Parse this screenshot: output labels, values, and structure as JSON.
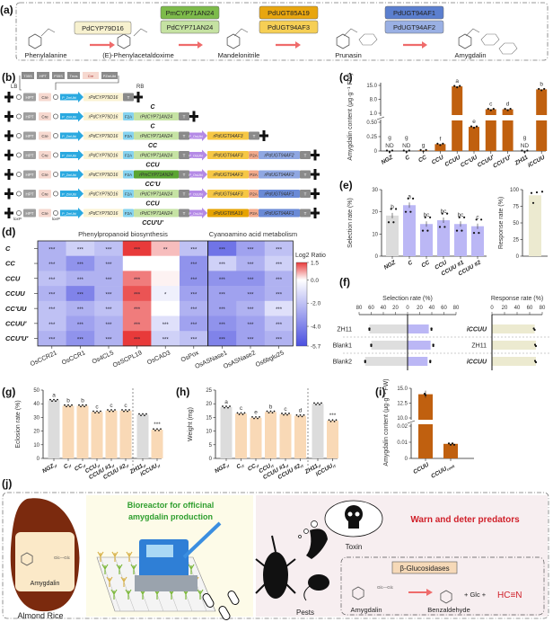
{
  "panel_labels": {
    "a": "(a)",
    "b": "(b)",
    "c": "(c)",
    "d": "(d)",
    "e": "(e)",
    "f": "(f)",
    "g": "(g)",
    "h": "(h)",
    "i": "(i)",
    "j": "(j)"
  },
  "pathway": {
    "compounds": [
      "Phenylalanine",
      "(E)-Phenylacetaldoxime",
      "Mandelonitrile",
      "Prunasin",
      "Amygdalin"
    ],
    "enzymes": [
      [
        {
          "label": "PdCYP79D16",
          "color": "#f7f1cf"
        }
      ],
      [
        {
          "label": "PmCYP71AN24",
          "color": "#7dbb4a"
        },
        {
          "label": "PdCYP71AN24",
          "color": "#c5e2a2"
        }
      ],
      [
        {
          "label": "PdUGT85A19",
          "color": "#e8a60f"
        },
        {
          "label": "PdUGT94AF3",
          "color": "#f6cf55"
        }
      ],
      [
        {
          "label": "PdUGT94AF1",
          "color": "#5b7fcf"
        },
        {
          "label": "PdUGT94AF2",
          "color": "#9ab0e4"
        }
      ]
    ],
    "arrow_color": "#ef6b6b"
  },
  "constructs": {
    "lb": "LB",
    "rb": "RB",
    "loxp": "loxP",
    "top_cassette": [
      "T35S",
      "HPT",
      "P35S",
      "Tnos",
      "Cre",
      "PZmUbi"
    ],
    "part_colors": {
      "HPT": "#9e9e9e",
      "Cre": "#f6d8cf",
      "P_ZmUbi": "#2aa9e0",
      "P_OsUbi": "#b48ae6",
      "rPdCYP79D16": "#fbf3d3",
      "F2A": "#86d3ef",
      "rPdCYP71AN24": "#c6e3a4",
      "rPmCYP71AN24": "#5aa532",
      "T": "#8a8a8a",
      "rPdUGT94AF3": "#f6c744",
      "rPdUGT85A19": "#e6a300",
      "P2A": "#f2a98a",
      "rPdUGT94AF2": "#8fa7e2",
      "rPdUGT94AF1": "#6a8ad6"
    },
    "rows": [
      {
        "label": "C",
        "parts": [
          "HPT",
          "Cre",
          "P_ZmUbi",
          "rPdCYP79D16",
          "T"
        ]
      },
      {
        "label": "C",
        "parts": [
          "HPT",
          "Cre",
          "P_ZmUbi",
          "rPdCYP79D16",
          "F2A",
          "rPdCYP71AN24",
          "T"
        ]
      },
      {
        "label": "CC",
        "parts": [
          "HPT",
          "Cre",
          "P_ZmUbi",
          "rPdCYP79D16",
          "F2A",
          "rPdCYP71AN24",
          "T",
          "P_OsUbi",
          "rPdUGT94AF3",
          "T"
        ]
      },
      {
        "label": "CCU",
        "parts": [
          "HPT",
          "Cre",
          "P_ZmUbi",
          "rPdCYP79D16",
          "F2A",
          "rPdCYP71AN24",
          "T",
          "P_OsUbi",
          "rPdUGT94AF3",
          "P2A",
          "rPdUGT94AF2",
          "T"
        ]
      },
      {
        "label": "CC'U",
        "parts": [
          "HPT",
          "Cre",
          "P_ZmUbi",
          "rPdCYP79D16",
          "F2A",
          "rPmCYP71AN24",
          "T",
          "P_OsUbi",
          "rPdUGT94AF3",
          "P2A",
          "rPdUGT94AF2",
          "T"
        ]
      },
      {
        "label": "CCU",
        "parts": [
          "HPT",
          "Cre",
          "P_ZmUbi",
          "rPdCYP79D16",
          "F2A",
          "rPdCYP71AN24",
          "T",
          "P_OsUbi",
          "rPdUGT94AF3",
          "P2A",
          "rPdUGT94AF1",
          "T"
        ]
      },
      {
        "label": "CCU'U'",
        "parts": [
          "HPT",
          "Cre",
          "P_ZmUbi",
          "rPdCYP79D16",
          "F2A",
          "rPdCYP71AN24",
          "T",
          "P_OsUbi",
          "rPdUGT85A19",
          "P2A",
          "rPdUGT94AF1",
          "T"
        ]
      }
    ]
  },
  "chart_data": [
    {
      "id": "c",
      "type": "bar",
      "ylabel": "Amygdalin content (µg·g⁻¹ FW)",
      "yticks": [
        "0",
        "0.25",
        "0.50",
        "1.0",
        "8.0",
        "15.0"
      ],
      "axis_break": [
        0.5,
        1.0
      ],
      "categories": [
        "NGZ",
        "C",
        "CC",
        "CCU",
        "CCUU",
        "CC'UU",
        "CCUU'",
        "CCU'U'",
        "ZH11",
        "iCCUU"
      ],
      "values": [
        0,
        0,
        0.01,
        0.12,
        14.5,
        0.42,
        3.0,
        3.0,
        0,
        13.0
      ],
      "annotations": [
        "ND",
        "ND",
        "",
        "",
        "",
        "",
        "",
        "",
        "ND",
        ""
      ],
      "letters": [
        "g",
        "g",
        "g",
        "f",
        "a",
        "e",
        "c",
        "d",
        "g",
        "b"
      ],
      "color": "#c0600f"
    },
    {
      "id": "e1",
      "type": "bar",
      "ylabel": "Selection rate (%)",
      "ylim": [
        0,
        30
      ],
      "yticks": [
        "0",
        "10",
        "20",
        "30"
      ],
      "categories": [
        "NGZ",
        "C",
        "CC",
        "CCU",
        "CCUU #1",
        "CCUU #2"
      ],
      "values": [
        18.3,
        23.0,
        14.5,
        16.2,
        14.5,
        13.5
      ],
      "letters": [
        "b",
        "a",
        "bc",
        "bc",
        "bc",
        "c"
      ],
      "colors": [
        "#dcdcdc",
        "#bbb7f5",
        "#bbb7f5",
        "#bbb7f5",
        "#bbb7f5",
        "#bbb7f5"
      ]
    },
    {
      "id": "e2",
      "type": "bar",
      "ylabel": "Response rate (%)",
      "ylim": [
        0,
        100
      ],
      "yticks": [
        "0",
        "25",
        "50",
        "75",
        "100"
      ],
      "values": [
        91.5
      ],
      "color": "#ecead0"
    },
    {
      "id": "f",
      "type": "bar-horizontal",
      "left_title": "Selection rate (%)",
      "right_title": "Response rate (%)",
      "sel_ticks": [
        "80",
        "60",
        "40",
        "20",
        "0",
        "20",
        "40",
        "60",
        "80"
      ],
      "resp_ticks": [
        "0",
        "20",
        "40",
        "60",
        "80"
      ],
      "rows": [
        {
          "left": "ZH11",
          "mid": "iCCUU",
          "sel_left": 63,
          "sel_right": 35,
          "resp": 68
        },
        {
          "left": "Blank1",
          "mid": "ZH11",
          "sel_left": 60,
          "sel_right": 38,
          "resp": 70
        },
        {
          "left": "Blank2",
          "mid": "iCCUU",
          "sel_left": 70,
          "sel_right": 33,
          "resp": 70
        }
      ]
    },
    {
      "id": "g",
      "type": "bar",
      "ylabel": "Eclosion rate (%)",
      "ylim": [
        0,
        50
      ],
      "yticks": [
        "0",
        "10",
        "20",
        "30",
        "40",
        "50"
      ],
      "categories": [
        "NGZ",
        "C",
        "CC",
        "CCU",
        "CCUU #1",
        "CCUU #2",
        "ZH11",
        "iCCUU"
      ],
      "subscript": "rf",
      "values": [
        42.5,
        38.5,
        38.5,
        34.0,
        35.0,
        35.0,
        32.0,
        21.0
      ],
      "letters": [
        "a",
        "b",
        "b",
        "c",
        "c",
        "c",
        "",
        "***"
      ],
      "colors": [
        "#dcdcdc",
        "#f9d9b6",
        "#f9d9b6",
        "#f9d9b6",
        "#f9d9b6",
        "#f9d9b6",
        "#dcdcdc",
        "#f9d9b6"
      ]
    },
    {
      "id": "h",
      "type": "bar",
      "ylabel": "Weight (mg)",
      "ylim": [
        0,
        25
      ],
      "yticks": [
        "0",
        "5",
        "10",
        "15",
        "20",
        "25"
      ],
      "categories": [
        "NGZ",
        "C",
        "CC",
        "CCU",
        "CCUU #1",
        "CCUU #2",
        "ZH11",
        "iCCUU"
      ],
      "subscript": "rf",
      "values": [
        18.8,
        16.4,
        14.9,
        17.0,
        16.2,
        15.6,
        20.0,
        13.8
      ],
      "letters": [
        "a",
        "c",
        "e",
        "b",
        "c",
        "d",
        "",
        "***"
      ],
      "colors": [
        "#dcdcdc",
        "#f9d9b6",
        "#f9d9b6",
        "#f9d9b6",
        "#f9d9b6",
        "#f9d9b6",
        "#dcdcdc",
        "#f9d9b6"
      ]
    },
    {
      "id": "i",
      "type": "bar",
      "ylabel": "Amygdalin content (µg·g⁻¹ FW)",
      "yticks": [
        "0",
        "0.01",
        "0.02",
        "10.0",
        "12.5",
        "15.0"
      ],
      "axis_break": [
        0.02,
        10.0
      ],
      "categories": [
        "CCUU",
        "CCUU"
      ],
      "subscripts": [
        "",
        "cook"
      ],
      "values": [
        14.0,
        0.009
      ],
      "color": "#c0600f"
    },
    {
      "id": "d",
      "type": "heatmap",
      "groups": [
        "Phenylpropanoid biosynthesis",
        "Cyanoamino acid metabolism"
      ],
      "rows": [
        "C",
        "CC",
        "CCU",
        "CCUU",
        "CC'UU",
        "CCUU'",
        "CCU'U'"
      ],
      "columns": [
        "OsCCR21",
        "OsCCR1",
        "Os4CL5",
        "OsSCPL19",
        "OsCAD3",
        "OsPox",
        "OsASNase1",
        "OsASNase2",
        "Os6bglu25"
      ],
      "values": [
        [
          -2.5,
          -1.5,
          -2.0,
          1.5,
          0.5,
          -2.0,
          -4.5,
          -3.0,
          -2.0
        ],
        [
          -2.5,
          -3.5,
          -2.5,
          0.0,
          0.0,
          -3.5,
          -1.5,
          -2.5,
          -1.5
        ],
        [
          -2.0,
          -2.5,
          -2.5,
          1.0,
          0.1,
          -3.5,
          -3.5,
          -3.5,
          -2.5
        ],
        [
          -2.5,
          -4.0,
          -2.5,
          1.3,
          -0.5,
          -3.0,
          -3.0,
          -3.0,
          -2.5
        ],
        [
          -2.0,
          -2.5,
          -2.0,
          1.0,
          0.0,
          -2.5,
          -3.0,
          -2.5,
          -1.0
        ],
        [
          -2.0,
          -3.0,
          -2.5,
          1.0,
          -1.0,
          -3.0,
          -3.5,
          -3.0,
          -2.0
        ],
        [
          -2.5,
          -3.5,
          -2.5,
          1.5,
          -1.5,
          -2.0,
          -4.0,
          -3.0,
          -2.5
        ]
      ],
      "stars": [
        [
          "***",
          "***",
          "***",
          "***",
          "**",
          "***",
          "***",
          "***",
          "***"
        ],
        [
          "***",
          "***",
          "***",
          "",
          "",
          "***",
          "***",
          "***",
          "***"
        ],
        [
          "***",
          "***",
          "***",
          "***",
          "",
          "***",
          "***",
          "***",
          "***"
        ],
        [
          "***",
          "***",
          "***",
          "***",
          "*",
          "***",
          "***",
          "***",
          "***"
        ],
        [
          "***",
          "***",
          "***",
          "***",
          "",
          "***",
          "***",
          "***",
          "***"
        ],
        [
          "***",
          "***",
          "***",
          "***",
          "***",
          "***",
          "***",
          "***",
          "***"
        ],
        [
          "***",
          "***",
          "***",
          "***",
          "***",
          "***",
          "***",
          "***",
          "***"
        ]
      ],
      "colorbar": {
        "title": "Log2 Ratio",
        "ticks": [
          "1.5",
          "0.0",
          "-2.0",
          "-4.0",
          "-5.7"
        ],
        "range": [
          -5.7,
          1.5
        ],
        "low": "#4a4fe0",
        "mid": "#ffffff",
        "high": "#e83a3a"
      }
    }
  ],
  "summary": {
    "rice_label": "Almond Rice",
    "amygdalin": "Amygdalin",
    "glc_glc": "Glc—Glc",
    "bioreactor_line1": "Bioreactor for officinal",
    "bioreactor_line2": "amygdalin production",
    "warn": "Warn and deter predators",
    "toxin": "Toxin",
    "pests": "Pests",
    "enzyme": "β-Glucosidases",
    "benzaldehyde": "Benzaldehyde",
    "plus_glc": "+ Glc +",
    "hcn": "HC≡N",
    "green": "#2e9e2e",
    "red": "#d0202a"
  }
}
